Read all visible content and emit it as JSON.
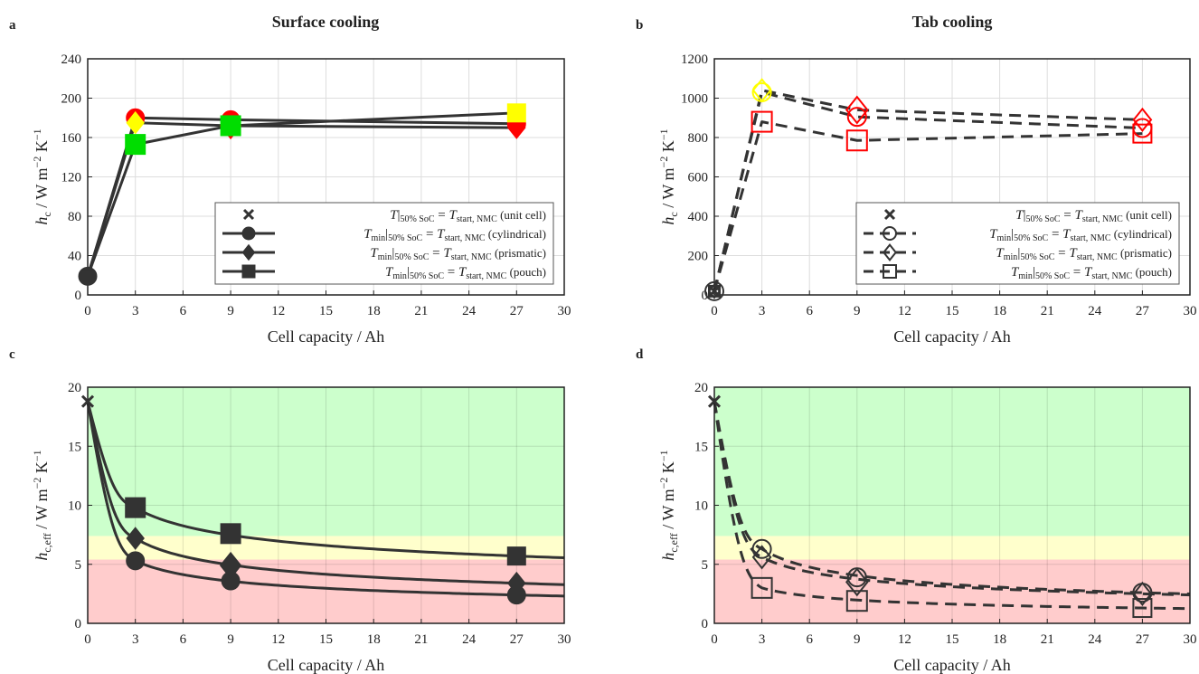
{
  "figure": {
    "panel_labels": [
      "a",
      "b",
      "c",
      "d"
    ],
    "titles": [
      "Surface cooling",
      "Tab cooling"
    ]
  },
  "colors": {
    "line": "#333333",
    "red": "#ff0000",
    "yellow": "#ffff00",
    "green": "#00dd00",
    "zone_green": "#ccffcc",
    "zone_yellow": "#ffffcc",
    "zone_red": "#ffcccc",
    "grid": "#dddddd"
  },
  "chart_data": [
    {
      "panel": "a",
      "type": "line",
      "title": "Surface cooling",
      "xlabel": "Cell capacity / Ah",
      "ylabel": "h_c / W m^-2 K^-1",
      "xlim": [
        0,
        30
      ],
      "ylim": [
        0,
        240
      ],
      "xticks": [
        0,
        3,
        6,
        9,
        12,
        15,
        18,
        21,
        24,
        27,
        30
      ],
      "yticks": [
        0,
        40,
        80,
        120,
        160,
        200,
        240
      ],
      "grid": true,
      "legend_position": "lower-right",
      "series": [
        {
          "name": "T|50% SoC = T_start,NMC (unit cell)",
          "marker": "x",
          "x": [
            0
          ],
          "y": [
            19
          ]
        },
        {
          "name": "T_min|50% SoC = T_start,NMC (cylindrical)",
          "marker": "circle",
          "style": "solid",
          "x": [
            0,
            3,
            9,
            27
          ],
          "y": [
            19,
            180,
            178,
            174
          ],
          "marker_colors": [
            "#333333",
            "#ff0000",
            "#ff0000",
            "#ff0000"
          ]
        },
        {
          "name": "T_min|50% SoC = T_start,NMC (prismatic)",
          "marker": "diamond",
          "style": "solid",
          "x": [
            0,
            3,
            9,
            27
          ],
          "y": [
            19,
            175,
            172,
            170
          ],
          "marker_colors": [
            "#333333",
            "#ffff00",
            "#ff0000",
            "#ff0000"
          ]
        },
        {
          "name": "T_min|50% SoC = T_start,NMC (pouch)",
          "marker": "square",
          "style": "solid",
          "x": [
            0,
            3,
            9,
            27
          ],
          "y": [
            19,
            153,
            172,
            185
          ],
          "marker_colors": [
            "#333333",
            "#00dd00",
            "#00dd00",
            "#ffff00"
          ]
        }
      ]
    },
    {
      "panel": "b",
      "type": "line",
      "title": "Tab cooling",
      "xlabel": "Cell capacity / Ah",
      "ylabel": "h_c / W m^-2 K^-1",
      "xlim": [
        0,
        30
      ],
      "ylim": [
        0,
        1200
      ],
      "xticks": [
        0,
        3,
        6,
        9,
        12,
        15,
        18,
        21,
        24,
        27,
        30
      ],
      "yticks": [
        0,
        200,
        400,
        600,
        800,
        1000,
        1200
      ],
      "grid": true,
      "legend_position": "lower-right",
      "series": [
        {
          "name": "T|50% SoC = T_start,NMC (unit cell)",
          "marker": "x",
          "x": [
            0
          ],
          "y": [
            19
          ]
        },
        {
          "name": "T_min|50% SoC = T_start,NMC (cylindrical)",
          "marker": "circle-open",
          "style": "dashed",
          "x": [
            0,
            3,
            9,
            27
          ],
          "y": [
            19,
            1030,
            905,
            848
          ],
          "marker_colors": [
            "#333333",
            "#ffff00",
            "#ff0000",
            "#ff0000"
          ]
        },
        {
          "name": "T_min|50% SoC = T_start,NMC (prismatic)",
          "marker": "diamond-open",
          "style": "dashed",
          "x": [
            0,
            3,
            9,
            27
          ],
          "y": [
            19,
            1040,
            940,
            890
          ],
          "marker_colors": [
            "#333333",
            "#ffff00",
            "#ff0000",
            "#ff0000"
          ]
        },
        {
          "name": "T_min|50% SoC = T_start,NMC (pouch)",
          "marker": "square-open",
          "style": "dashed",
          "x": [
            0,
            3,
            9,
            27
          ],
          "y": [
            19,
            880,
            785,
            820
          ],
          "marker_colors": [
            "#333333",
            "#ff0000",
            "#ff0000",
            "#ff0000"
          ]
        }
      ]
    },
    {
      "panel": "c",
      "type": "line",
      "xlabel": "Cell capacity / Ah",
      "ylabel": "h_c,eff / W m^-2 K^-1",
      "xlim": [
        0,
        30
      ],
      "ylim": [
        0,
        20
      ],
      "xticks": [
        0,
        3,
        6,
        9,
        12,
        15,
        18,
        21,
        24,
        27,
        30
      ],
      "yticks": [
        0,
        5,
        10,
        15,
        20
      ],
      "grid": true,
      "zones": [
        {
          "color": "#ffcccc",
          "from": 0,
          "to": 5.4
        },
        {
          "color": "#ffffcc",
          "from": 5.4,
          "to": 7.4
        },
        {
          "color": "#ccffcc",
          "from": 7.4,
          "to": 20
        }
      ],
      "series": [
        {
          "marker": "x",
          "x": [
            0
          ],
          "y": [
            18.8
          ]
        },
        {
          "marker": "circle",
          "style": "solid",
          "x": [
            3,
            9,
            27
          ],
          "y": [
            5.3,
            3.6,
            2.4
          ]
        },
        {
          "marker": "diamond",
          "style": "solid",
          "x": [
            3,
            9,
            27
          ],
          "y": [
            7.2,
            4.9,
            3.4
          ]
        },
        {
          "marker": "square",
          "style": "solid",
          "x": [
            3,
            9,
            27
          ],
          "y": [
            9.8,
            7.6,
            5.7
          ]
        }
      ]
    },
    {
      "panel": "d",
      "type": "line",
      "xlabel": "Cell capacity / Ah",
      "ylabel": "h_c,eff / W m^-2 K^-1",
      "xlim": [
        0,
        30
      ],
      "ylim": [
        0,
        20
      ],
      "xticks": [
        0,
        3,
        6,
        9,
        12,
        15,
        18,
        21,
        24,
        27,
        30
      ],
      "yticks": [
        0,
        5,
        10,
        15,
        20
      ],
      "grid": true,
      "zones": [
        {
          "color": "#ffcccc",
          "from": 0,
          "to": 5.4
        },
        {
          "color": "#ffffcc",
          "from": 5.4,
          "to": 7.4
        },
        {
          "color": "#ccffcc",
          "from": 7.4,
          "to": 20
        }
      ],
      "series": [
        {
          "marker": "x",
          "x": [
            0
          ],
          "y": [
            18.8
          ]
        },
        {
          "marker": "circle-open",
          "style": "dashed",
          "x": [
            3,
            9,
            27
          ],
          "y": [
            6.3,
            3.9,
            2.6
          ]
        },
        {
          "marker": "diamond-open",
          "style": "dashed",
          "x": [
            3,
            9,
            27
          ],
          "y": [
            5.6,
            3.5,
            2.5
          ]
        },
        {
          "marker": "square-open",
          "style": "dashed",
          "x": [
            3,
            9,
            27
          ],
          "y": [
            3.0,
            1.9,
            1.3
          ]
        }
      ]
    }
  ]
}
